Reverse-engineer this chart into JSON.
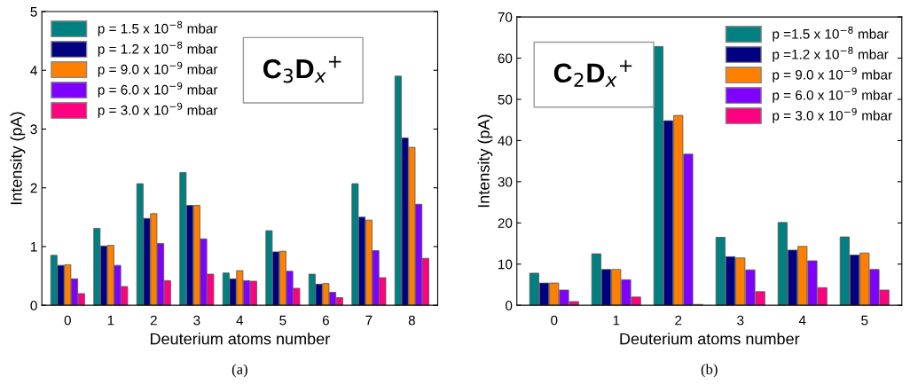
{
  "chart_data": [
    {
      "type": "bar",
      "xlabel": "Deuterium atoms number",
      "ylabel": "Intensity (pA)",
      "categories": [
        "0",
        "1",
        "2",
        "3",
        "4",
        "5",
        "6",
        "7",
        "8"
      ],
      "ylim": [
        0,
        5
      ],
      "yticks": [
        0,
        1,
        2,
        3,
        4,
        5
      ],
      "legend": "top left",
      "grid": false,
      "annotations": [
        "C$_{3}$D$_{x}$$^{+}$",
        "(a)"
      ],
      "series": [
        {
          "name": "p = 1.5 x 10$^{−8}$ mbar",
          "color": "#008080",
          "values": [
            0.85,
            1.31,
            2.07,
            2.26,
            0.55,
            1.27,
            0.53,
            2.07,
            3.9
          ]
        },
        {
          "name": "p = 1.2 x 10$^{−8}$ mbar",
          "color": "#000080",
          "values": [
            0.68,
            1.01,
            1.48,
            1.7,
            0.45,
            0.91,
            0.36,
            1.5,
            2.85
          ]
        },
        {
          "name": "p = 9.0 x 10$^{−9}$ mbar",
          "color": "#ff8000",
          "values": [
            0.69,
            1.02,
            1.56,
            1.7,
            0.59,
            0.92,
            0.37,
            1.45,
            2.69
          ]
        },
        {
          "name": "p = 6.0 x 10$^{−9}$ mbar",
          "color": "#8000ff",
          "values": [
            0.45,
            0.68,
            1.05,
            1.13,
            0.42,
            0.58,
            0.22,
            0.93,
            1.72
          ]
        },
        {
          "name": "p = 3.0 x 10$^{−9}$ mbar",
          "color": "#ff0080",
          "values": [
            0.2,
            0.32,
            0.42,
            0.53,
            0.41,
            0.29,
            0.13,
            0.47,
            0.8
          ]
        }
      ]
    },
    {
      "type": "bar",
      "xlabel": "Deuterium atoms number",
      "ylabel": "Intensity (pA)",
      "categories": [
        "0",
        "1",
        "2",
        "3",
        "4",
        "5"
      ],
      "ylim": [
        0,
        70
      ],
      "yticks": [
        0,
        10,
        20,
        30,
        40,
        50,
        60,
        70
      ],
      "legend": "top right",
      "grid": false,
      "annotations": [
        "C$_{2}$D$_{x}$$^{+}$",
        "(b)"
      ],
      "series": [
        {
          "name": "p =1.5 x 10$^{−8}$ mbar",
          "color": "#008080",
          "values": [
            7.8,
            12.5,
            62.8,
            16.5,
            20.1,
            16.6
          ]
        },
        {
          "name": "p =1.2 x 10$^{−8}$ mbar",
          "color": "#000080",
          "values": [
            5.4,
            8.7,
            44.8,
            11.8,
            13.4,
            12.2
          ]
        },
        {
          "name": "p = 9.0 x 10$^{−9}$ mbar",
          "color": "#ff8000",
          "values": [
            5.4,
            8.7,
            46.1,
            11.5,
            14.3,
            12.7
          ]
        },
        {
          "name": "p = 6.0 x 10$^{−9}$ mbar",
          "color": "#8000ff",
          "values": [
            3.7,
            6.2,
            36.7,
            8.6,
            10.8,
            8.7
          ]
        },
        {
          "name": "p = 3.0 x 10$^{−9}$ mbar",
          "color": "#ff0080",
          "values": [
            0.9,
            2.0,
            0.2,
            3.3,
            4.3,
            3.7
          ]
        }
      ]
    }
  ]
}
